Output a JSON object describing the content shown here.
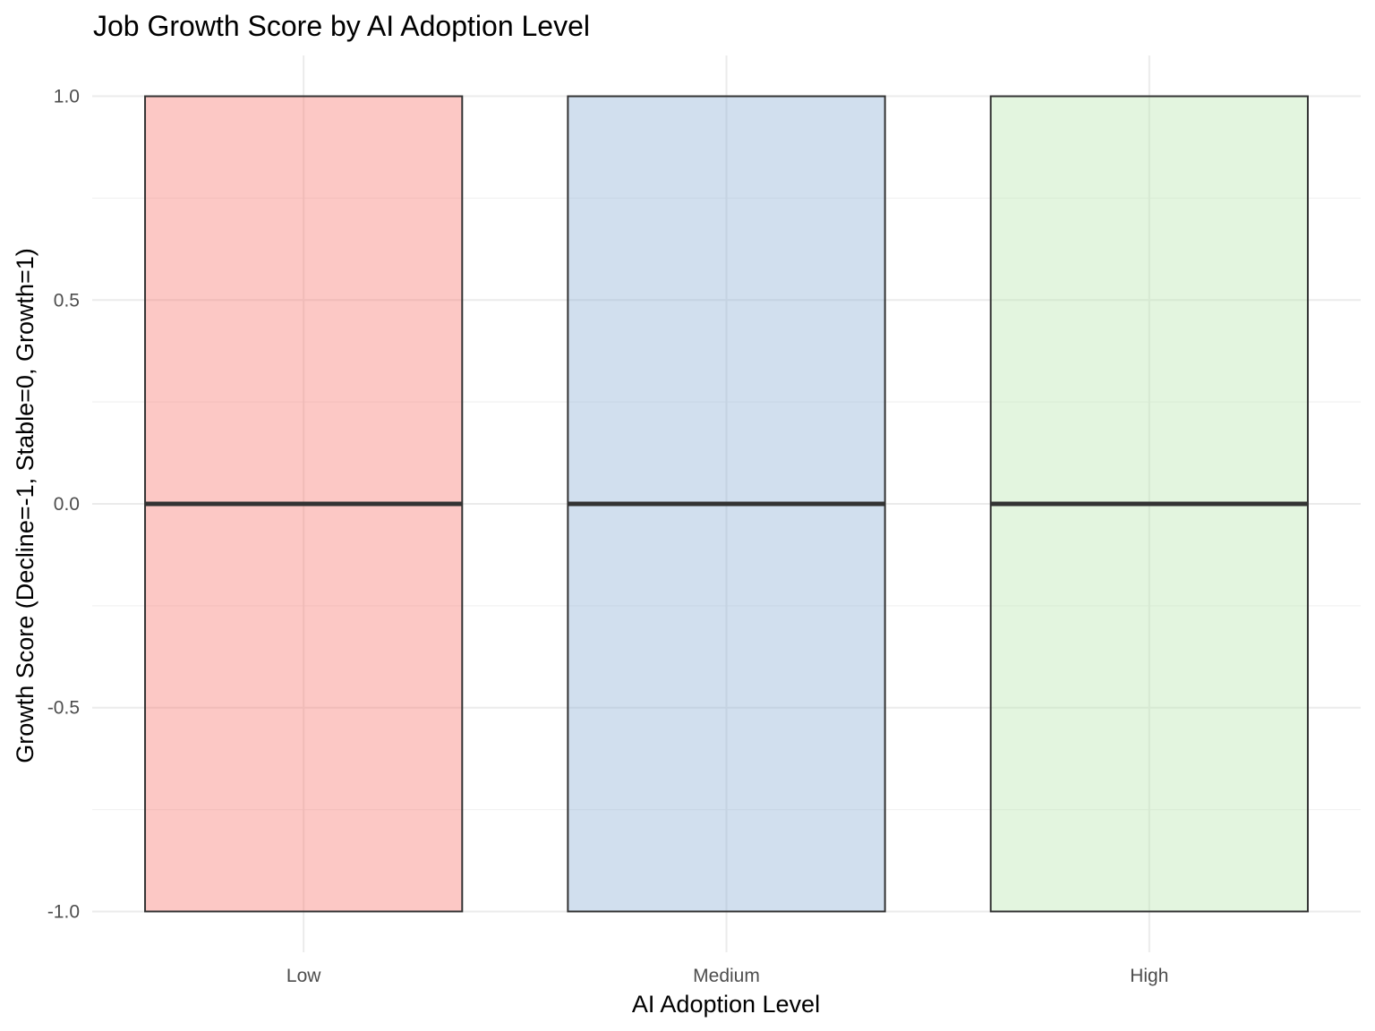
{
  "chart_data": {
    "type": "boxplot",
    "title": "Job Growth Score by AI Adoption Level",
    "xlabel": "AI Adoption Level",
    "ylabel": "Growth Score (Decline=-1, Stable=0, Growth=1)",
    "categories": [
      "Low",
      "Medium",
      "High"
    ],
    "boxes": [
      {
        "category": "Low",
        "min": -1,
        "q1": -1,
        "median": 0,
        "q3": 1,
        "max": 1,
        "color": "#F8766D"
      },
      {
        "category": "Medium",
        "min": -1,
        "q1": -1,
        "median": 0,
        "q3": 1,
        "max": 1,
        "color": "#8DB0D4"
      },
      {
        "category": "High",
        "min": -1,
        "q1": -1,
        "median": 0,
        "q3": 1,
        "max": 1,
        "color": "#B8E6AE"
      }
    ],
    "ylim": [
      -1.1,
      1.1
    ],
    "yticks": [
      -1.0,
      -0.5,
      0.0,
      0.5,
      1.0
    ],
    "ytick_labels": [
      "-1.0",
      "-0.5",
      "0.0",
      "0.5",
      "1.0"
    ],
    "grid": true,
    "legend": "none"
  }
}
